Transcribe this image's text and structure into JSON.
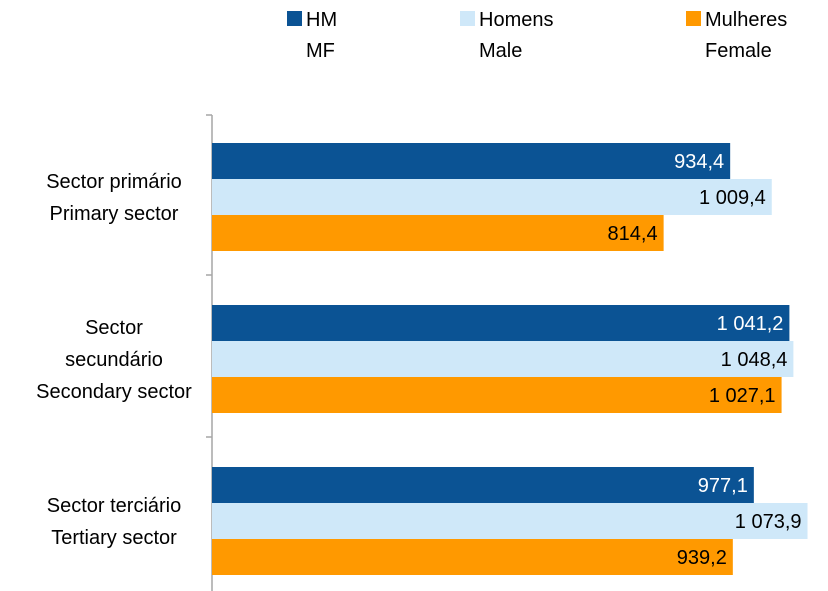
{
  "chart_data": {
    "type": "bar",
    "orientation": "horizontal",
    "categories": [
      [
        "Sector primário",
        "Primary sector"
      ],
      [
        "Sector",
        "secundário",
        "Secondary sector"
      ],
      [
        "Sector terciário",
        "Tertiary sector"
      ]
    ],
    "series": [
      {
        "name": [
          "HM",
          "MF"
        ],
        "color": "#0b5394",
        "values": [
          934.4,
          1041.2,
          977.1
        ],
        "labels": [
          "934,4",
          "1 041,2",
          "977,1"
        ],
        "label_color": "#ffffff"
      },
      {
        "name": [
          "Homens",
          "Male"
        ],
        "color": "#cfe8f9",
        "values": [
          1009.4,
          1048.4,
          1073.9
        ],
        "labels": [
          "1 009,4",
          "1 048,4",
          "1 073,9"
        ],
        "label_color": "#000000"
      },
      {
        "name": [
          "Mulheres",
          "Female"
        ],
        "color": "#ff9900",
        "values": [
          814.4,
          1027.1,
          939.2
        ],
        "labels": [
          "814,4",
          "1 027,1",
          "939,2"
        ],
        "label_color": "#000000"
      }
    ],
    "xlim": [
      0,
      1100
    ],
    "xaxis_visible": false,
    "grid": false,
    "legend_position": "top",
    "data_labels": "inside-end"
  }
}
